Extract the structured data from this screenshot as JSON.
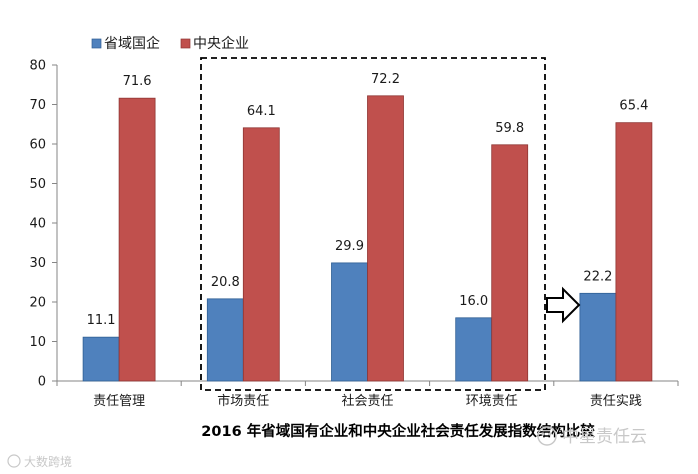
{
  "chart_data": {
    "type": "bar",
    "title": "2016 年省域国有企业和中央企业社会责任发展指数结构比较",
    "categories": [
      "责任管理",
      "市场责任",
      "社会责任",
      "环境责任",
      "责任实践"
    ],
    "series": [
      {
        "name": "省域国企",
        "values": [
          11.1,
          20.8,
          29.9,
          16.0,
          22.2
        ],
        "value_labels": [
          "11.1",
          "20.8",
          "29.9",
          "16.0",
          "22.2"
        ],
        "color": "#4F81BD"
      },
      {
        "name": "中央企业",
        "values": [
          71.6,
          64.1,
          72.2,
          59.8,
          65.4
        ],
        "value_labels": [
          "71.6",
          "64.1",
          "72.2",
          "59.8",
          "65.4"
        ],
        "color": "#C0504D"
      }
    ],
    "ylim": [
      0,
      80
    ],
    "yticks": [
      "0",
      "10",
      "20",
      "30",
      "40",
      "50",
      "60",
      "70",
      "80"
    ],
    "xlabel": "",
    "ylabel": "",
    "legend": "top-left",
    "grid": false,
    "annotations": [
      "dashed box around 市场责任, 社会责任, 环境责任",
      "arrow pointing to 责任实践"
    ]
  },
  "watermarks": {
    "right": "中星责任云",
    "left": "大数跨境"
  }
}
